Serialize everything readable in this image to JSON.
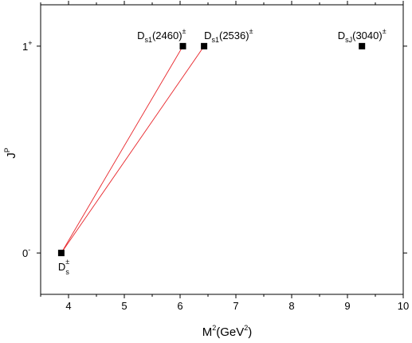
{
  "chart_data": {
    "type": "scatter",
    "title": "",
    "xlabel": {
      "base": "M",
      "sup": "2",
      "unit_open": "(GeV",
      "unit_sup": "2",
      "unit_close": ")"
    },
    "ylabel": {
      "base": "J",
      "sup": "P"
    },
    "xlim": [
      3.5,
      10
    ],
    "ylim": [
      -0.2,
      1.2
    ],
    "x_ticks": [
      "4",
      "5",
      "6",
      "7",
      "8",
      "9",
      "10"
    ],
    "y_ticks": [
      {
        "value": 0,
        "base": "0",
        "sup": "-"
      },
      {
        "value": 1,
        "base": "1",
        "sup": "+"
      }
    ],
    "grid": false,
    "points": [
      {
        "x": 3.87,
        "y": 0,
        "label": {
          "base": "D",
          "sup": "±",
          "sub": "s",
          "paren": "",
          "after": ""
        },
        "label_pos": "below"
      },
      {
        "x": 6.05,
        "y": 1,
        "label": {
          "base": "D",
          "sub": "s1",
          "paren": "(2460)",
          "sup": "±"
        },
        "label_pos": "above-left"
      },
      {
        "x": 6.43,
        "y": 1,
        "label": {
          "base": "D",
          "sub": "s1",
          "paren": "(2536)",
          "sup": "±"
        },
        "label_pos": "above-right"
      },
      {
        "x": 9.26,
        "y": 1,
        "label": {
          "base": "D",
          "sub": "sJ",
          "paren": "(3040)",
          "sup": "±"
        },
        "label_pos": "above"
      }
    ],
    "lines": [
      {
        "from": [
          3.87,
          0
        ],
        "to": [
          6.05,
          1
        ],
        "color": "#e8262b"
      },
      {
        "from": [
          3.87,
          0
        ],
        "to": [
          6.43,
          1
        ],
        "color": "#e8262b"
      }
    ]
  }
}
